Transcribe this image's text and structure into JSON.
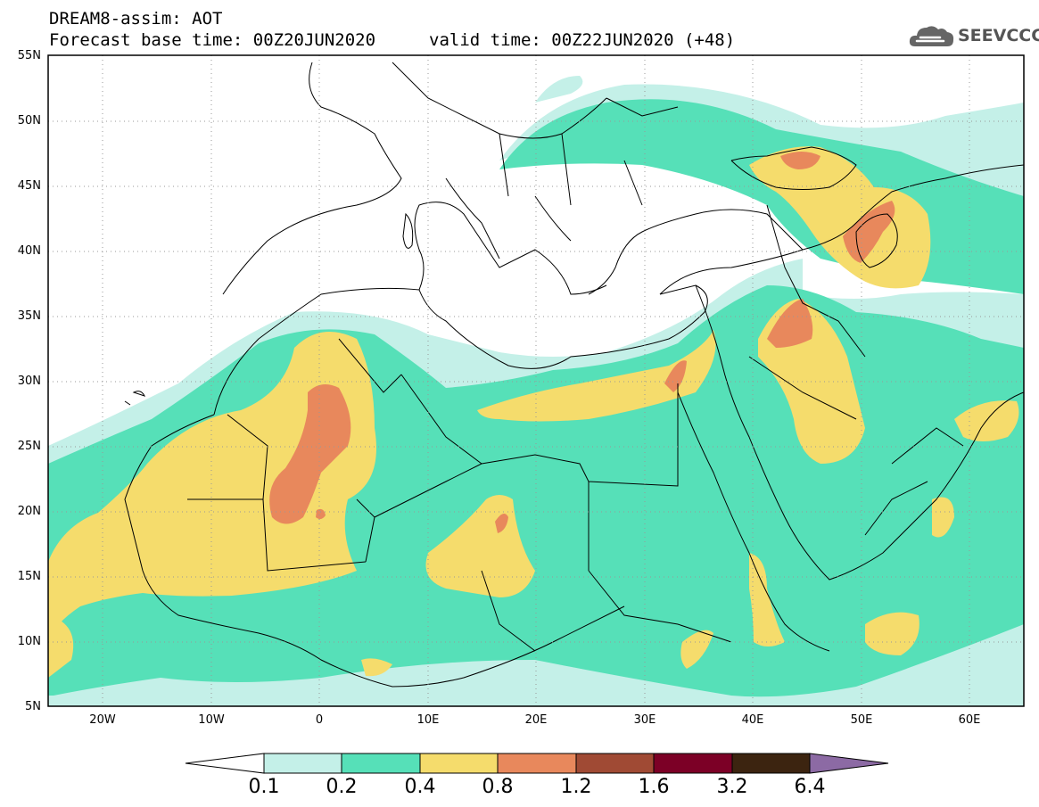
{
  "header": {
    "line1": "DREAM8-assim: AOT",
    "base_time": "Forecast base time: 00Z20JUN2020",
    "valid_time": "valid time: 00Z22JUN2020 (+48)"
  },
  "logo": {
    "text": "SEEVCCC",
    "icon": "cloud-icon"
  },
  "map": {
    "lon_range": [
      -25,
      65
    ],
    "lat_range": [
      5,
      55
    ],
    "lat_ticks": [
      "55N",
      "50N",
      "45N",
      "40N",
      "35N",
      "30N",
      "25N",
      "20N",
      "15N",
      "10N",
      "5N"
    ],
    "lon_ticks": [
      "20W",
      "10W",
      "0",
      "10E",
      "20E",
      "30E",
      "40E",
      "50E",
      "60E"
    ],
    "grid": "dotted"
  },
  "colorbar": {
    "labels": [
      "0.1",
      "0.2",
      "0.4",
      "0.8",
      "1.2",
      "1.6",
      "3.2",
      "6.4"
    ],
    "colors": [
      "#ffffff",
      "#c4f0e8",
      "#56e0b8",
      "#f5dc6c",
      "#e8885c",
      "#a04a34",
      "#7c0026",
      "#3c2410",
      "#8c6aa4"
    ]
  }
}
